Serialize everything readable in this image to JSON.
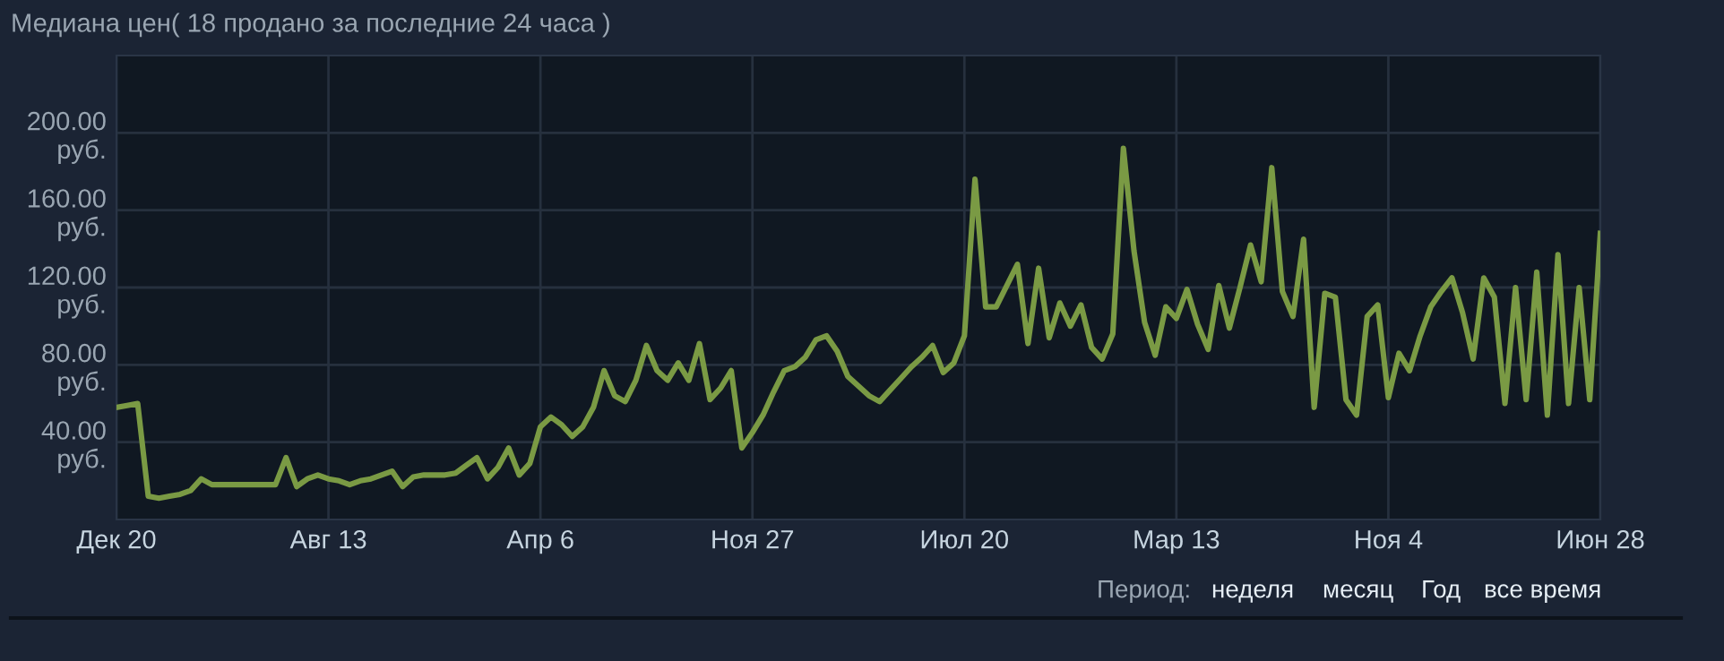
{
  "chart_data": {
    "type": "line",
    "title": "Медиана цен( 18 продано за последние 24 часа )",
    "annotations": [
      "Период:",
      "неделя",
      "месяц",
      "Год",
      "все время"
    ],
    "categories": [
      "Дек 20",
      null,
      null,
      null,
      null,
      null,
      null,
      null,
      null,
      null,
      null,
      null,
      null,
      null,
      null,
      null,
      null,
      null,
      null,
      null,
      "Авг 13",
      null,
      null,
      null,
      null,
      null,
      null,
      null,
      null,
      null,
      null,
      null,
      null,
      null,
      null,
      null,
      null,
      null,
      null,
      null,
      "Апр 6",
      null,
      null,
      null,
      null,
      null,
      null,
      null,
      null,
      null,
      null,
      null,
      null,
      null,
      null,
      null,
      null,
      null,
      null,
      null,
      "Ноя 27",
      null,
      null,
      null,
      null,
      null,
      null,
      null,
      null,
      null,
      null,
      null,
      null,
      null,
      null,
      null,
      null,
      null,
      null,
      null,
      "Июл 20",
      null,
      null,
      null,
      null,
      null,
      null,
      null,
      null,
      null,
      null,
      null,
      null,
      null,
      null,
      null,
      null,
      null,
      null,
      null,
      "Мар 13",
      null,
      null,
      null,
      null,
      null,
      null,
      null,
      null,
      null,
      null,
      null,
      null,
      null,
      null,
      null,
      null,
      null,
      null,
      null,
      "Ноя 4",
      null,
      null,
      null,
      null,
      null,
      null,
      null,
      null,
      null,
      null,
      null,
      null,
      null,
      null,
      null,
      null,
      null,
      null,
      null,
      "Июн 28"
    ],
    "series": [
      {
        "color": "#7a9a44",
        "values": [
          58,
          59,
          60,
          12,
          11,
          12,
          13,
          15,
          21,
          18,
          18,
          18,
          18,
          18,
          18,
          18,
          32,
          17,
          21,
          23,
          21,
          20,
          18,
          20,
          21,
          23,
          25,
          17,
          22,
          23,
          23,
          23,
          24,
          28,
          32,
          21,
          27,
          37,
          23,
          29,
          48,
          53,
          49,
          43,
          48,
          58,
          77,
          64,
          61,
          72,
          90,
          77,
          72,
          81,
          72,
          91,
          62,
          68,
          77,
          37,
          45,
          54,
          66,
          77,
          79,
          84,
          93,
          95,
          87,
          74,
          69,
          64,
          61,
          67,
          73,
          79,
          84,
          90,
          76,
          81,
          95,
          176,
          110,
          110,
          121,
          132,
          91,
          130,
          94,
          112,
          100,
          111,
          89,
          83,
          96,
          192,
          139,
          102,
          85,
          110,
          104,
          119,
          101,
          88,
          121,
          99,
          120,
          142,
          123,
          182,
          118,
          105,
          145,
          58,
          117,
          115,
          62,
          54,
          105,
          111,
          63,
          86,
          77,
          95,
          110,
          118,
          125,
          107,
          83,
          125,
          115,
          60,
          120,
          62,
          128,
          54,
          137,
          60,
          120,
          62,
          148
        ]
      }
    ],
    "ylim": [
      0,
      240
    ],
    "yticks": [
      {
        "value": 40,
        "label": "40.00\nруб."
      },
      {
        "value": 80,
        "label": "80.00\nруб."
      },
      {
        "value": 120,
        "label": "120.00\nруб."
      },
      {
        "value": 160,
        "label": "160.00\nруб."
      },
      {
        "value": 200,
        "label": "200.00\nруб."
      }
    ],
    "grid": true,
    "line_style": "solid",
    "marker": "none"
  }
}
